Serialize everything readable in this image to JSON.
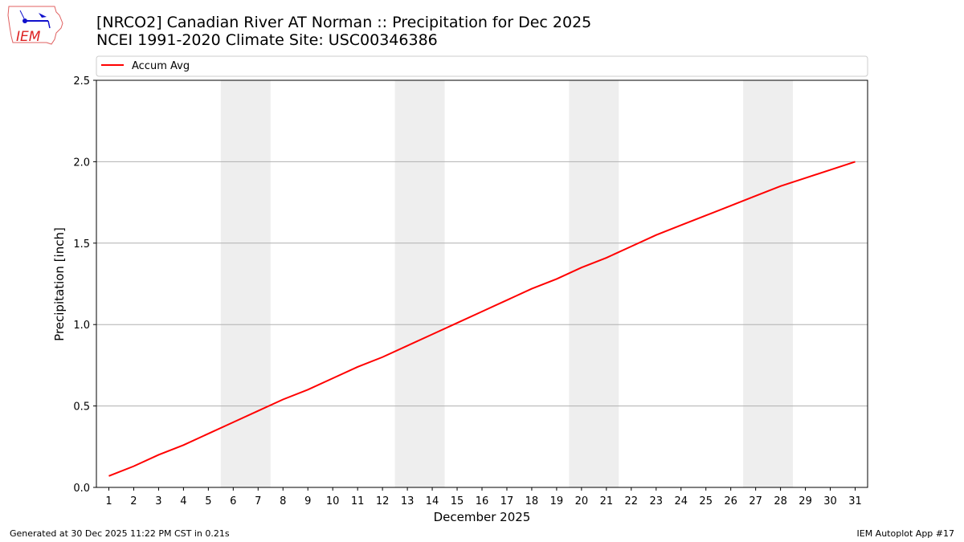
{
  "logo": {
    "text": "IEM"
  },
  "title_line1": "[NRCO2] Canadian River  AT Norman :: Precipitation for Dec 2025",
  "title_line2": "NCEI 1991-2020 Climate Site: USC00346386",
  "footer_left": "Generated at 30 Dec 2025 11:22 PM CST in 0.21s",
  "footer_right": "IEM Autoplot App #17",
  "chart_data": {
    "type": "line",
    "xlabel": "December 2025",
    "ylabel": "Precipitation [inch]",
    "xlim": [
      0.5,
      31.5
    ],
    "ylim": [
      0,
      2.5
    ],
    "yticks": [
      0.0,
      0.5,
      1.0,
      1.5,
      2.0,
      2.5
    ],
    "ytick_labels": [
      "0.0",
      "0.5",
      "1.0",
      "1.5",
      "2.0",
      "2.5"
    ],
    "x": [
      1,
      2,
      3,
      4,
      5,
      6,
      7,
      8,
      9,
      10,
      11,
      12,
      13,
      14,
      15,
      16,
      17,
      18,
      19,
      20,
      21,
      22,
      23,
      24,
      25,
      26,
      27,
      28,
      29,
      30,
      31
    ],
    "series": [
      {
        "name": "Accum Avg",
        "color": "#ff0000",
        "values": [
          0.07,
          0.13,
          0.2,
          0.26,
          0.33,
          0.4,
          0.47,
          0.54,
          0.6,
          0.67,
          0.74,
          0.8,
          0.87,
          0.94,
          1.01,
          1.08,
          1.15,
          1.22,
          1.28,
          1.35,
          1.41,
          1.48,
          1.55,
          1.61,
          1.67,
          1.73,
          1.79,
          1.85,
          1.9,
          1.95,
          2.0
        ]
      }
    ],
    "weekend_shading": [
      [
        5.5,
        7.5
      ],
      [
        12.5,
        14.5
      ],
      [
        19.5,
        21.5
      ],
      [
        26.5,
        28.5
      ]
    ],
    "shading_color": "#eeeeee",
    "grid": "y",
    "legend_placement": "top"
  }
}
